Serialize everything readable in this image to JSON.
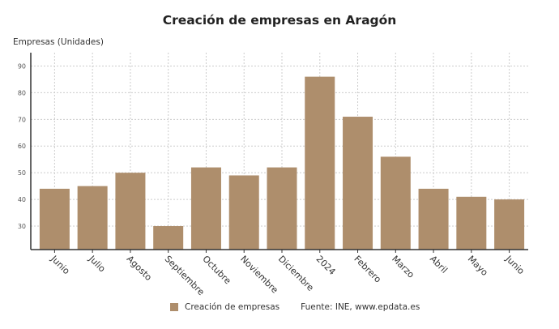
{
  "chart_data": {
    "type": "bar",
    "title": "Creación de empresas en Aragón",
    "ylabel": "Empresas (Unidades)",
    "xlabel": "",
    "categories": [
      "Junio",
      "Julio",
      "Agosto",
      "Septiembre",
      "Octubre",
      "Noviembre",
      "Diciembre",
      "2024",
      "Febrero",
      "Marzo",
      "Abril",
      "Mayo",
      "Junio"
    ],
    "values": [
      44,
      45,
      50,
      30,
      52,
      49,
      52,
      86,
      71,
      56,
      44,
      41,
      40
    ],
    "yticks": [
      30,
      40,
      50,
      60,
      70,
      80,
      90
    ],
    "ylim": [
      21.2,
      95
    ],
    "grid": true,
    "color": "#ae8e6c",
    "legend": {
      "label": "Creación de empresas",
      "placement": "bottom"
    },
    "source": "Fuente: INE, www.epdata.es"
  }
}
